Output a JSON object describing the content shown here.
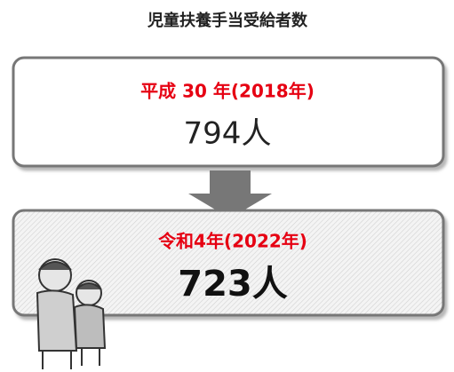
{
  "title": "児童扶養手当受給者数",
  "before": {
    "period": "平成 30 年(2018年)",
    "count": "794人"
  },
  "after": {
    "period": "令和4年(2022年)",
    "count": "723人"
  }
}
